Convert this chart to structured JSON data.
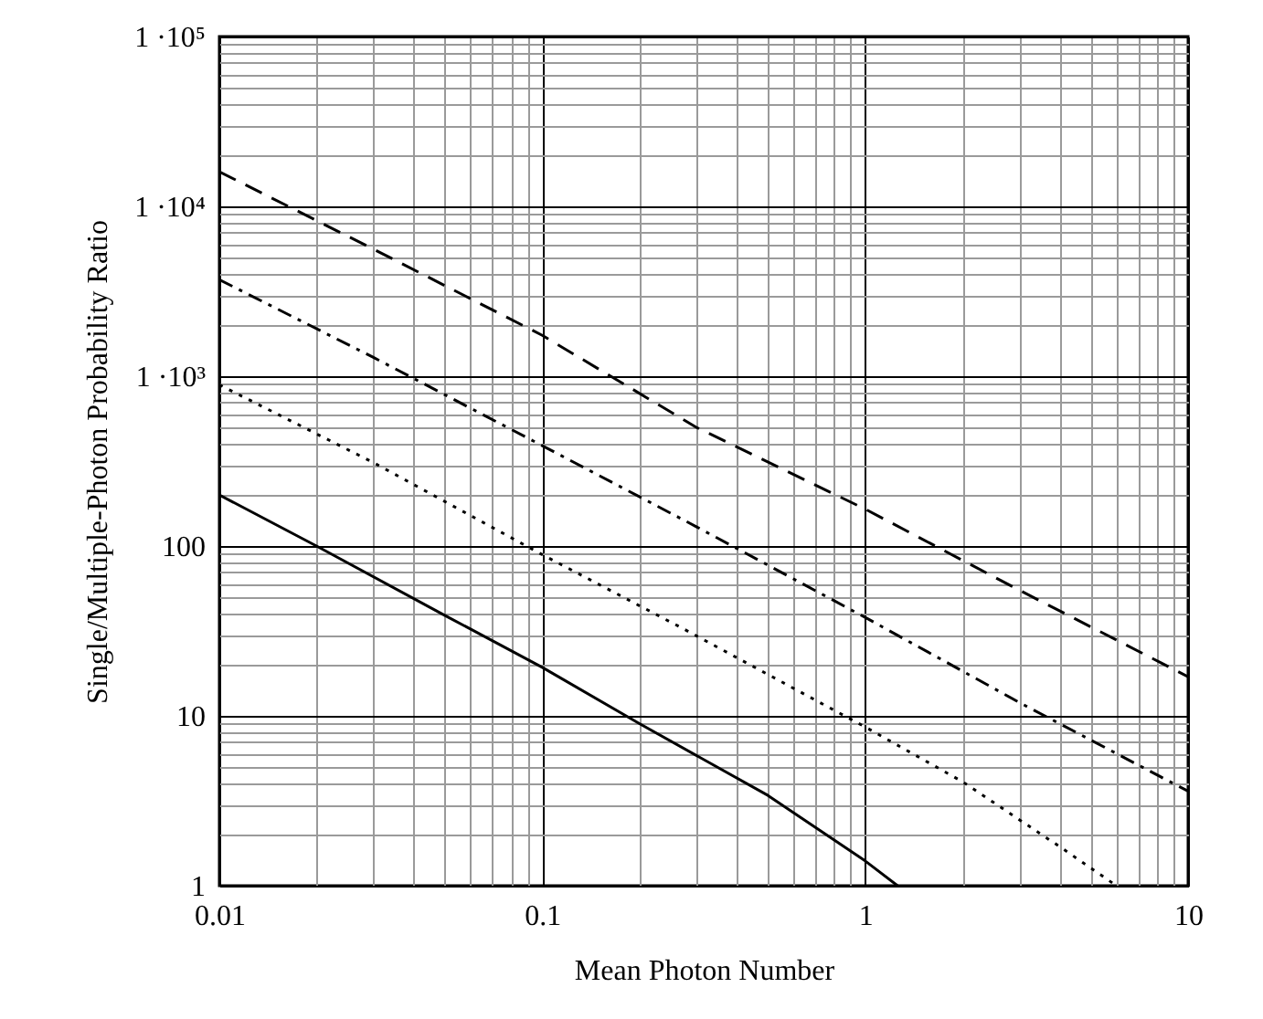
{
  "chart_data": {
    "type": "line",
    "xlabel": "Mean Photon Number",
    "ylabel": "Single/Multiple-Photon Probability Ratio",
    "log": "xy",
    "grid": true,
    "marker": "none",
    "xlim": [
      0.01,
      10
    ],
    "ylim": [
      1,
      100000
    ],
    "xticks": [
      0.01,
      {
        "value": 0.02,
        "label": null
      },
      {
        "value": 0.03,
        "label": null
      },
      {
        "value": 0.04,
        "label": null
      },
      {
        "value": 0.05,
        "label": null
      },
      {
        "value": 0.06,
        "label": null
      },
      {
        "value": 0.07,
        "label": null
      },
      {
        "value": 0.08,
        "label": null
      },
      {
        "value": 0.09,
        "label": null
      },
      0.1,
      {
        "value": 0.2,
        "label": null
      },
      {
        "value": 0.3,
        "label": null
      },
      {
        "value": 0.4,
        "label": null
      },
      {
        "value": 0.5,
        "label": null
      },
      {
        "value": 0.6,
        "label": null
      },
      {
        "value": 0.7,
        "label": null
      },
      {
        "value": 0.8,
        "label": null
      },
      {
        "value": 0.9,
        "label": null
      },
      1,
      {
        "value": 2,
        "label": null
      },
      {
        "value": 3,
        "label": null
      },
      {
        "value": 4,
        "label": null
      },
      {
        "value": 5,
        "label": null
      },
      {
        "value": 6,
        "label": null
      },
      {
        "value": 7,
        "label": null
      },
      {
        "value": 8,
        "label": null
      },
      {
        "value": 9,
        "label": null
      },
      10
    ],
    "yticks": [
      1,
      {
        "value": 2,
        "label": null
      },
      {
        "value": 3,
        "label": null
      },
      {
        "value": 4,
        "label": null
      },
      {
        "value": 5,
        "label": null
      },
      {
        "value": 6,
        "label": null
      },
      {
        "value": 7,
        "label": null
      },
      {
        "value": 8,
        "label": null
      },
      {
        "value": 9,
        "label": null
      },
      10,
      {
        "value": 20,
        "label": null
      },
      {
        "value": 30,
        "label": null
      },
      {
        "value": 40,
        "label": null
      },
      {
        "value": 50,
        "label": null
      },
      {
        "value": 60,
        "label": null
      },
      {
        "value": 70,
        "label": null
      },
      {
        "value": 80,
        "label": null
      },
      {
        "value": 90,
        "label": null
      },
      100,
      {
        "value": 200,
        "label": null
      },
      {
        "value": 300,
        "label": null
      },
      {
        "value": 400,
        "label": null
      },
      {
        "value": 500,
        "label": null
      },
      {
        "value": 600,
        "label": null
      },
      {
        "value": 700,
        "label": null
      },
      {
        "value": 800,
        "label": null
      },
      {
        "value": 900,
        "label": null
      },
      {
        "value": 1000,
        "label": "1 ·10³"
      },
      {
        "value": 2000,
        "label": null
      },
      {
        "value": 3000,
        "label": null
      },
      {
        "value": 4000,
        "label": null
      },
      {
        "value": 5000,
        "label": null
      },
      {
        "value": 6000,
        "label": null
      },
      {
        "value": 7000,
        "label": null
      },
      {
        "value": 8000,
        "label": null
      },
      {
        "value": 9000,
        "label": null
      },
      {
        "value": 10000,
        "label": "1 ·10⁴"
      },
      {
        "value": 20000,
        "label": null
      },
      {
        "value": 30000,
        "label": null
      },
      {
        "value": 40000,
        "label": null
      },
      {
        "value": 50000,
        "label": null
      },
      {
        "value": 60000,
        "label": null
      },
      {
        "value": 70000,
        "label": null
      },
      {
        "value": 80000,
        "label": null
      },
      {
        "value": 90000,
        "label": null
      },
      {
        "value": 100000,
        "label": "1 ·10⁵"
      }
    ],
    "series": [
      {
        "color": "#000000",
        "line_style": "solid",
        "x": [
          0.01,
          0.02,
          0.05,
          0.1,
          0.2,
          0.5,
          1,
          1.26
        ],
        "values": [
          200,
          100,
          39,
          19.3,
          9,
          3.4,
          1.4,
          1
        ]
      },
      {
        "color": "#000000",
        "line_style": "dotted",
        "x": [
          0.01,
          0.03,
          0.1,
          0.27,
          1,
          2,
          4,
          6
        ],
        "values": [
          890,
          310,
          89,
          33,
          8.6,
          4.1,
          1.7,
          1
        ]
      },
      {
        "color": "#000000",
        "line_style": "dashdot",
        "x": [
          0.01,
          0.03,
          0.1,
          0.3,
          1,
          3,
          10
        ],
        "values": [
          3700,
          1290,
          390,
          130,
          38,
          12,
          3.6
        ]
      },
      {
        "color": "#000000",
        "line_style": "dashed",
        "x": [
          0.01,
          0.03,
          0.1,
          0.3,
          1,
          3,
          10
        ],
        "values": [
          16000,
          5600,
          1740,
          500,
          165,
          55,
          17
        ]
      }
    ]
  }
}
